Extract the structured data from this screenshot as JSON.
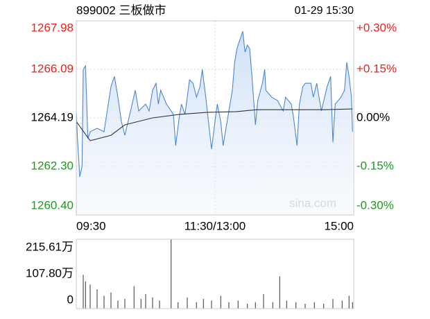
{
  "chart_data": [
    {
      "type": "line",
      "title": "899002 三板做市",
      "timestamp": "01-29 15:30",
      "watermark": "sina.com",
      "xlim": [
        0,
        240
      ],
      "xticks": [
        {
          "value": 0,
          "label": "09:30"
        },
        {
          "value": 120,
          "label": "11:30/13:00"
        },
        {
          "value": 240,
          "label": "15:00"
        }
      ],
      "ylim": [
        1260.4,
        1267.98
      ],
      "yticks": [
        {
          "value": 1260.4,
          "label": "1260.40"
        },
        {
          "value": 1262.3,
          "label": "1262.30"
        },
        {
          "value": 1264.19,
          "label": "1264.19"
        },
        {
          "value": 1266.09,
          "label": "1266.09"
        },
        {
          "value": 1267.98,
          "label": "1267.98"
        }
      ],
      "y2lim": [
        -0.3,
        0.3
      ],
      "y2ticks": [
        {
          "value": -0.3,
          "label": "-0.30%"
        },
        {
          "value": -0.15,
          "label": "-0.15%"
        },
        {
          "value": 0,
          "label": "0.00%"
        },
        {
          "value": 0.15,
          "label": "+0.15%"
        },
        {
          "value": 0.3,
          "label": "+0.30%"
        }
      ],
      "label_colors": {
        "up": "#e8221a",
        "flat": "#000000",
        "down": "#1c9a1c"
      },
      "grid": true,
      "series": [
        {
          "color": "#4a86d4",
          "fill": true,
          "x": [
            0,
            1,
            3,
            5,
            6,
            8,
            10,
            12,
            18,
            24,
            30,
            33,
            36,
            39,
            42,
            47,
            51,
            54,
            60,
            63,
            66,
            69,
            71,
            73,
            78,
            84,
            86,
            89,
            91,
            94,
            98,
            101,
            104,
            107,
            109,
            112,
            114,
            117,
            120,
            122,
            125,
            127,
            132,
            135,
            137,
            139,
            144,
            146,
            148,
            150,
            152,
            155,
            157,
            161,
            163,
            164,
            169,
            174,
            179,
            181,
            186,
            188,
            191,
            193,
            196,
            198,
            203,
            205,
            208,
            210,
            212,
            217,
            220,
            222,
            224,
            229,
            232,
            234,
            236,
            238,
            239
          ],
          "values": [
            1264.46,
            1263.38,
            1261.89,
            1262.3,
            1266.08,
            1266.22,
            1263.38,
            1263.65,
            1263.78,
            1263.65,
            1265.41,
            1265.81,
            1265.0,
            1264.05,
            1263.51,
            1264.46,
            1265.27,
            1264.46,
            1264.73,
            1264.46,
            1265.27,
            1265.54,
            1264.73,
            1265.27,
            1264.73,
            1264.33,
            1263.11,
            1264.19,
            1264.73,
            1264.33,
            1265.68,
            1265.54,
            1265.0,
            1265.41,
            1266.08,
            1265.0,
            1264.19,
            1262.97,
            1264.05,
            1264.73,
            1264.05,
            1263.11,
            1264.46,
            1265.27,
            1266.36,
            1266.9,
            1267.57,
            1266.76,
            1267.03,
            1266.9,
            1265.81,
            1263.92,
            1264.87,
            1265.54,
            1266.08,
            1265.27,
            1265.0,
            1264.87,
            1264.46,
            1265.0,
            1264.73,
            1264.19,
            1263.11,
            1264.73,
            1265.41,
            1265.54,
            1265.54,
            1265.0,
            1265.54,
            1265.0,
            1264.46,
            1265.41,
            1265.81,
            1263.24,
            1264.73,
            1265.0,
            1265.27,
            1266.36,
            1265.81,
            1265.0,
            1263.65
          ]
        },
        {
          "color": "#333333",
          "fill": false,
          "x": [
            0,
            12,
            30,
            42,
            66,
            90,
            114,
            138,
            156,
            186,
            216,
            239
          ],
          "values": [
            1264.05,
            1263.3,
            1263.51,
            1263.92,
            1264.19,
            1264.33,
            1264.41,
            1264.43,
            1264.51,
            1264.51,
            1264.51,
            1264.54
          ]
        }
      ]
    },
    {
      "type": "bar",
      "color": "#555555",
      "xlim": [
        0,
        240
      ],
      "ylim": [
        0,
        215.61
      ],
      "yticks": [
        0,
        {
          "value": 107.8,
          "label": "107.80万"
        },
        {
          "value": 215.61,
          "label": "215.61万"
        }
      ],
      "x": [
        6,
        8,
        12,
        18,
        24,
        30,
        36,
        42,
        50,
        56,
        60,
        66,
        72,
        82,
        88,
        96,
        104,
        110,
        117,
        125,
        132,
        140,
        148,
        155,
        162,
        170,
        176,
        182,
        190,
        198,
        206,
        214,
        222,
        230,
        236,
        239
      ],
      "values": [
        105,
        85,
        75,
        60,
        40,
        50,
        25,
        30,
        70,
        30,
        45,
        35,
        25,
        215.61,
        20,
        35,
        20,
        30,
        25,
        40,
        20,
        25,
        15,
        20,
        45,
        20,
        100,
        25,
        20,
        15,
        20,
        15,
        30,
        25,
        40,
        20
      ]
    }
  ]
}
